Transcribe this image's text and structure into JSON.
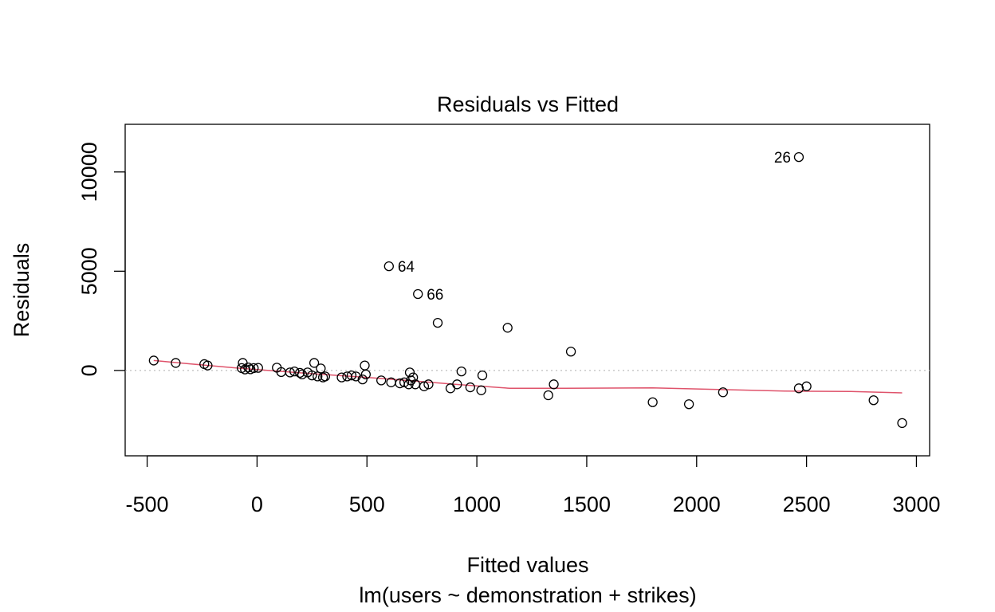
{
  "chart_data": {
    "type": "scatter",
    "title": "Residuals vs Fitted",
    "xlabel": "Fitted values",
    "sub_xlabel": "lm(users ~ demonstration + strikes)",
    "ylabel": "Residuals",
    "xlim": [
      -600,
      3060
    ],
    "ylim": [
      -4300,
      12400
    ],
    "xticks": [
      -500,
      0,
      500,
      1000,
      1500,
      2000,
      2500,
      3000
    ],
    "xtick_labels": [
      "-500",
      "0",
      "500",
      "1000",
      "1500",
      "2000",
      "2500",
      "3000"
    ],
    "yticks": [
      0,
      5000,
      10000
    ],
    "ytick_labels": [
      "0",
      "5000",
      "10000"
    ],
    "zero_line": true,
    "grid": false,
    "colors": {
      "smoother": "#DF536B",
      "zero_line": "#BEBEBE",
      "points": "#000000"
    },
    "points": [
      {
        "x": 2465,
        "y": 10750,
        "label": "26"
      },
      {
        "x": 600,
        "y": 5250,
        "label": "64"
      },
      {
        "x": 732,
        "y": 3850,
        "label": "66"
      },
      {
        "x": 822,
        "y": 2400
      },
      {
        "x": 1140,
        "y": 2150
      },
      {
        "x": 1428,
        "y": 950
      },
      {
        "x": -470,
        "y": 500
      },
      {
        "x": -370,
        "y": 380
      },
      {
        "x": -240,
        "y": 320
      },
      {
        "x": -225,
        "y": 250
      },
      {
        "x": -65,
        "y": 380
      },
      {
        "x": -70,
        "y": 120
      },
      {
        "x": -55,
        "y": 50
      },
      {
        "x": -40,
        "y": 150
      },
      {
        "x": -30,
        "y": 60
      },
      {
        "x": -15,
        "y": 120
      },
      {
        "x": 5,
        "y": 130
      },
      {
        "x": 90,
        "y": 140
      },
      {
        "x": 110,
        "y": -80
      },
      {
        "x": 150,
        "y": -100
      },
      {
        "x": 170,
        "y": -50
      },
      {
        "x": 195,
        "y": -120
      },
      {
        "x": 205,
        "y": -200
      },
      {
        "x": 230,
        "y": -100
      },
      {
        "x": 250,
        "y": -250
      },
      {
        "x": 260,
        "y": 380
      },
      {
        "x": 275,
        "y": -300
      },
      {
        "x": 290,
        "y": 100
      },
      {
        "x": 300,
        "y": -350
      },
      {
        "x": 310,
        "y": -300
      },
      {
        "x": 385,
        "y": -350
      },
      {
        "x": 410,
        "y": -300
      },
      {
        "x": 430,
        "y": -250
      },
      {
        "x": 450,
        "y": -300
      },
      {
        "x": 480,
        "y": -450
      },
      {
        "x": 490,
        "y": 250
      },
      {
        "x": 495,
        "y": -200
      },
      {
        "x": 565,
        "y": -500
      },
      {
        "x": 610,
        "y": -600
      },
      {
        "x": 650,
        "y": -650
      },
      {
        "x": 670,
        "y": -600
      },
      {
        "x": 690,
        "y": -700
      },
      {
        "x": 695,
        "y": -100
      },
      {
        "x": 700,
        "y": -500
      },
      {
        "x": 710,
        "y": -350
      },
      {
        "x": 720,
        "y": -700
      },
      {
        "x": 760,
        "y": -800
      },
      {
        "x": 780,
        "y": -700
      },
      {
        "x": 880,
        "y": -900
      },
      {
        "x": 910,
        "y": -700
      },
      {
        "x": 930,
        "y": -50
      },
      {
        "x": 970,
        "y": -850
      },
      {
        "x": 1020,
        "y": -1000
      },
      {
        "x": 1025,
        "y": -250
      },
      {
        "x": 1325,
        "y": -1250
      },
      {
        "x": 1350,
        "y": -700
      },
      {
        "x": 1800,
        "y": -1600
      },
      {
        "x": 1965,
        "y": -1700
      },
      {
        "x": 2120,
        "y": -1100
      },
      {
        "x": 2465,
        "y": -900
      },
      {
        "x": 2500,
        "y": -800
      },
      {
        "x": 2805,
        "y": -1500
      },
      {
        "x": 2935,
        "y": -2650
      }
    ],
    "smoother": [
      {
        "x": -470,
        "y": 500
      },
      {
        "x": -300,
        "y": 330
      },
      {
        "x": -100,
        "y": 130
      },
      {
        "x": 100,
        "y": -40
      },
      {
        "x": 300,
        "y": -200
      },
      {
        "x": 500,
        "y": -350
      },
      {
        "x": 700,
        "y": -520
      },
      {
        "x": 900,
        "y": -700
      },
      {
        "x": 1150,
        "y": -900
      },
      {
        "x": 1400,
        "y": -900
      },
      {
        "x": 1800,
        "y": -880
      },
      {
        "x": 2100,
        "y": -960
      },
      {
        "x": 2400,
        "y": -1040
      },
      {
        "x": 2700,
        "y": -1060
      },
      {
        "x": 2935,
        "y": -1130
      }
    ]
  }
}
